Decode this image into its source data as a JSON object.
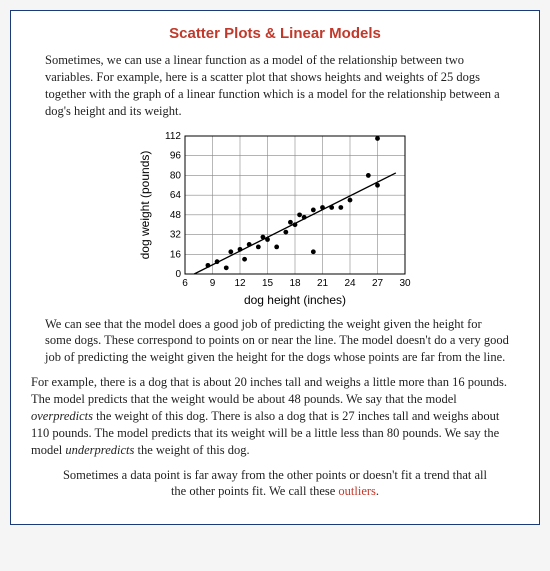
{
  "title": "Scatter Plots & Linear Models",
  "para1": "Sometimes, we can use a linear function as a model of the relationship between two variables. For example, here is a scatter plot that shows heights and weights of 25 dogs together with the graph of a linear function which is a model for the relationship between a dog's height and its weight.",
  "para2": "We can see that the model does a good job of predicting the weight given the height for some dogs. These correspond to points on or near the line. The model doesn't do a very good job of predicting the weight given the height for the dogs whose points are far from the line.",
  "para3_a": "For example, there is a dog that is about 20 inches tall and weighs a little more than 16 pounds. The model predicts that the weight would be about 48 pounds. We say that the model ",
  "para3_em1": "overpredicts",
  "para3_b": " the weight of this dog. There is also a dog that is 27 inches tall and weighs about 110 pounds. The model predicts that its weight will be a little less than 80 pounds. We say the model ",
  "para3_em2": "underpredicts",
  "para3_c": " the weight of this dog.",
  "para4_a": "Sometimes a data point is far away from the other points or doesn't fit a trend that all the other points fit. We call these ",
  "para4_hl": "outliers",
  "para4_b": ".",
  "chart": {
    "type": "scatter",
    "xlabel": "dog height (inches)",
    "ylabel": "dog weight (pounds)",
    "xlim": [
      6,
      30
    ],
    "ylim": [
      0,
      112
    ],
    "xticks": [
      6,
      9,
      12,
      15,
      18,
      21,
      24,
      27,
      30
    ],
    "yticks": [
      0,
      16,
      32,
      48,
      64,
      80,
      96,
      112
    ],
    "grid_color": "#888888",
    "axis_color": "#000000",
    "point_color": "#000000",
    "background_color": "#ffffff",
    "point_radius": 2.4,
    "line_color": "#000000",
    "line_p1": [
      7,
      -6
    ],
    "line_p2": [
      29,
      82
    ],
    "label_fontsize": 12,
    "tick_fontsize": 10,
    "points": [
      [
        8.5,
        7
      ],
      [
        9.5,
        10
      ],
      [
        10.5,
        5
      ],
      [
        11,
        18
      ],
      [
        12,
        20
      ],
      [
        12.5,
        12
      ],
      [
        13,
        24
      ],
      [
        14,
        22
      ],
      [
        14.5,
        30
      ],
      [
        15,
        28
      ],
      [
        16,
        22
      ],
      [
        17,
        34
      ],
      [
        17.5,
        42
      ],
      [
        18,
        40
      ],
      [
        18.5,
        48
      ],
      [
        19,
        46
      ],
      [
        20,
        18
      ],
      [
        20,
        52
      ],
      [
        21,
        54
      ],
      [
        22,
        54
      ],
      [
        23,
        54
      ],
      [
        24,
        60
      ],
      [
        26,
        80
      ],
      [
        27,
        72
      ],
      [
        27,
        110
      ]
    ]
  }
}
